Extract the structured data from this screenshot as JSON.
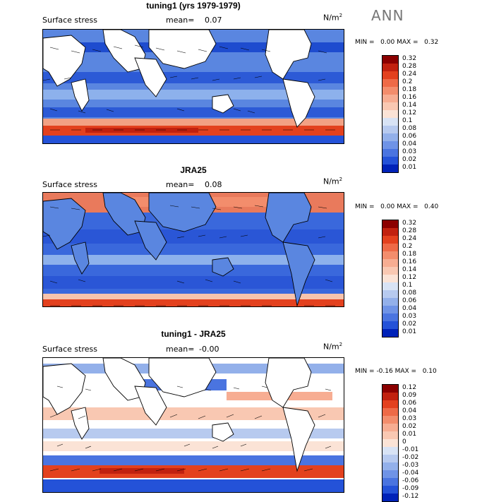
{
  "season": "ANN",
  "panels": [
    {
      "title": "tuning1 (yrs 1979-1979)",
      "field": "Surface stress",
      "mean_label": "mean=",
      "mean_value": "0.07",
      "units": "N/m",
      "units_sup": "2",
      "min_label": "MIN =",
      "min_value": "0.00",
      "max_label": "MAX =",
      "max_value": "0.32",
      "colorbar": {
        "levels": [
          "0.32",
          "0.28",
          "0.24",
          "0.2",
          "0.18",
          "0.16",
          "0.14",
          "0.12",
          "0.1",
          "0.08",
          "0.06",
          "0.04",
          "0.03",
          "0.02",
          "0.01"
        ],
        "colors": [
          "#8b0000",
          "#c1210f",
          "#e3411e",
          "#ee6a47",
          "#f38d6c",
          "#f7ad92",
          "#f9c8b2",
          "#fbe3d6",
          "#d8e3f5",
          "#b7caef",
          "#93b0ea",
          "#6f93e6",
          "#4a74e0",
          "#2452d8",
          "#0022b8"
        ]
      }
    },
    {
      "title": "JRA25",
      "field": "Surface stress",
      "mean_label": "mean=",
      "mean_value": "0.08",
      "units": "N/m",
      "units_sup": "2",
      "min_label": "MIN =",
      "min_value": "0.00",
      "max_label": "MAX =",
      "max_value": "0.40",
      "colorbar": {
        "levels": [
          "0.32",
          "0.28",
          "0.24",
          "0.2",
          "0.18",
          "0.16",
          "0.14",
          "0.12",
          "0.1",
          "0.08",
          "0.06",
          "0.04",
          "0.03",
          "0.02",
          "0.01"
        ],
        "colors": [
          "#8b0000",
          "#c1210f",
          "#e3411e",
          "#ee6a47",
          "#f38d6c",
          "#f7ad92",
          "#f9c8b2",
          "#fbe3d6",
          "#d8e3f5",
          "#b7caef",
          "#93b0ea",
          "#6f93e6",
          "#4a74e0",
          "#2452d8",
          "#0022b8"
        ]
      }
    },
    {
      "title": "tuning1 - JRA25",
      "field": "Surface stress",
      "mean_label": "mean=",
      "mean_value": "-0.00",
      "units": "N/m",
      "units_sup": "2",
      "min_label": "MIN =",
      "min_value": "-0.16",
      "max_label": "MAX =",
      "max_value": "0.10",
      "colorbar": {
        "levels": [
          "0.12",
          "0.09",
          "0.06",
          "0.04",
          "0.03",
          "0.02",
          "0.01",
          "0",
          "-0.01",
          "-0.02",
          "-0.03",
          "-0.04",
          "-0.06",
          "-0.09",
          "-0.12"
        ],
        "colors": [
          "#8b0000",
          "#c1210f",
          "#e3411e",
          "#ee6a47",
          "#f38d6c",
          "#f7ad92",
          "#f9c8b2",
          "#fbe3d6",
          "#d8e3f5",
          "#b7caef",
          "#93b0ea",
          "#6f93e6",
          "#4a74e0",
          "#2452d8",
          "#0022b8"
        ]
      }
    }
  ],
  "chart_data": {
    "type": "heatmap",
    "season": "ANN",
    "maps": [
      {
        "title": "tuning1 (yrs 1979-1979)",
        "variable": "Surface stress",
        "units": "N/m2",
        "mean": 0.07,
        "min": 0.0,
        "max": 0.32
      },
      {
        "title": "JRA25",
        "variable": "Surface stress",
        "units": "N/m2",
        "mean": 0.08,
        "min": 0.0,
        "max": 0.4
      },
      {
        "title": "tuning1 - JRA25",
        "variable": "Surface stress",
        "units": "N/m2",
        "mean": -0.0,
        "min": -0.16,
        "max": 0.1
      }
    ]
  }
}
